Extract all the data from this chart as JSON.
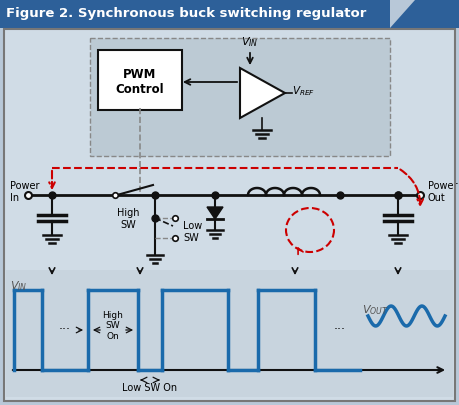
{
  "title": "Figure 2. Synchronous buck switching regulator",
  "title_bg": "#2d6099",
  "title_color": "#ffffff",
  "bg_color": "#b8c8d8",
  "panel_bg": "#c8d8e8",
  "blue_line": "#1a6aab",
  "red_dashed": "#cc0000",
  "black": "#111111",
  "dark_gray": "#555555",
  "white": "#ffffff",
  "gray_box": "#b0c0d0",
  "pwm_label": "PWM\nControl",
  "power_in_label": "Power\nIn",
  "power_out_label": "Power\nOut",
  "high_sw_label": "High\nSW",
  "low_sw_label": "Low\nSW",
  "high_sw_on_label": "High\nSW\nOn",
  "low_sw_on_label": "Low SW On",
  "dots": "···"
}
